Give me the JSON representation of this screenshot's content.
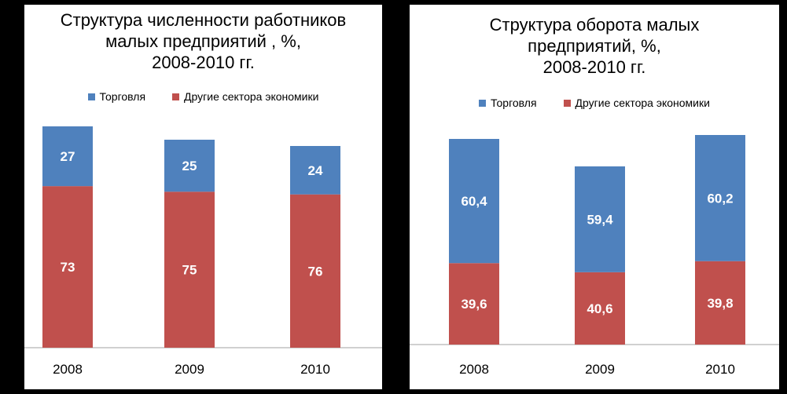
{
  "colors": {
    "trade": "#4f81bd",
    "other": "#c0504d",
    "background": "#000000",
    "panel": "#ffffff"
  },
  "chart_data": [
    {
      "type": "bar",
      "stacked": true,
      "title_lines": [
        "Структура численности работников",
        "малых предприятий , %,",
        "2008-2010 гг."
      ],
      "categories": [
        "2008",
        "2009",
        "2010"
      ],
      "series": [
        {
          "name": "Торговля",
          "color": "#4f81bd",
          "values": [
            27,
            25,
            24
          ],
          "labels": [
            "27",
            "25",
            "24"
          ]
        },
        {
          "name": "Другие сектора экономики",
          "color": "#c0504d",
          "values": [
            73,
            75,
            76
          ],
          "labels": [
            "73",
            "75",
            "76"
          ]
        }
      ],
      "legend_position": "top",
      "grid": false,
      "ylim": [
        0,
        100
      ]
    },
    {
      "type": "bar",
      "stacked": true,
      "title_lines": [
        "Структура оборота малых",
        "предприятий, %,",
        "2008-2010 гг."
      ],
      "categories": [
        "2008",
        "2009",
        "2010"
      ],
      "series": [
        {
          "name": "Торговля",
          "color": "#4f81bd",
          "values": [
            60.4,
            59.4,
            60.2
          ],
          "labels": [
            "60,4",
            "59,4",
            "60,2"
          ]
        },
        {
          "name": "Другие сектора экономики",
          "color": "#c0504d",
          "values": [
            39.6,
            40.6,
            39.8
          ],
          "labels": [
            "39,6",
            "40,6",
            "39,8"
          ]
        }
      ],
      "legend_position": "top",
      "grid": false,
      "ylim": [
        0,
        100
      ]
    }
  ]
}
